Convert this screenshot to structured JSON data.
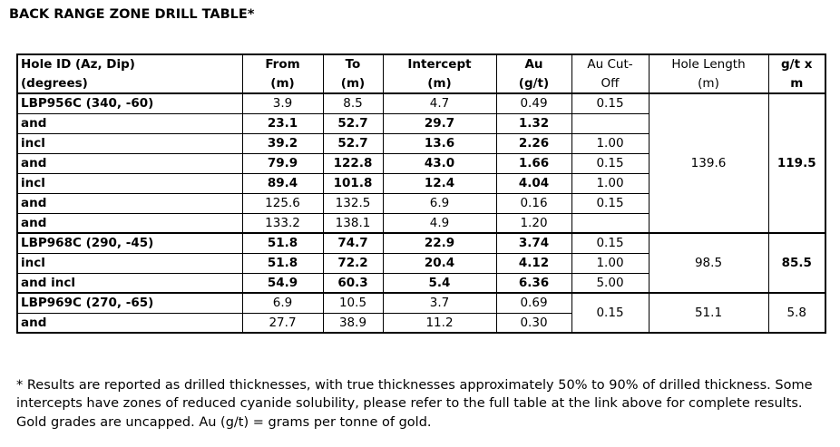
{
  "title": "BACK RANGE ZONE DRILL TABLE*",
  "colors": {
    "text": "#000000",
    "border": "#000000",
    "background": "#ffffff"
  },
  "table": {
    "columns": [
      {
        "name": "hole-id",
        "label": "Hole ID (Az, Dip)\n(degrees)",
        "bold": true
      },
      {
        "name": "from",
        "label": "From\n(m)",
        "bold": true
      },
      {
        "name": "to",
        "label": "To\n(m)",
        "bold": true
      },
      {
        "name": "intercept",
        "label": "Intercept\n(m)",
        "bold": true
      },
      {
        "name": "au",
        "label": "Au\n(g/t)",
        "bold": true
      },
      {
        "name": "au-cutoff",
        "label": "Au Cut-\nOff",
        "bold": false
      },
      {
        "name": "hole-length",
        "label": "Hole Length\n(m)",
        "bold": false
      },
      {
        "name": "gt-x-m",
        "label": "g/t x\nm",
        "bold": true
      }
    ],
    "rows": [
      {
        "group_start": true,
        "cells": [
          {
            "t": "LBP956C (340, -60)",
            "b": true
          },
          {
            "t": "3.9"
          },
          {
            "t": "8.5"
          },
          {
            "t": "4.7"
          },
          {
            "t": "0.49"
          },
          {
            "t": "0.15"
          },
          {
            "t": "139.6",
            "rowspan": 7
          },
          {
            "t": "119.5",
            "b": true,
            "rowspan": 7
          }
        ]
      },
      {
        "group_start": false,
        "cells": [
          {
            "t": "and",
            "b": true
          },
          {
            "t": "23.1",
            "b": true
          },
          {
            "t": "52.7",
            "b": true
          },
          {
            "t": "29.7",
            "b": true
          },
          {
            "t": "1.32",
            "b": true
          },
          {
            "t": ""
          }
        ]
      },
      {
        "group_start": false,
        "cells": [
          {
            "t": "incl",
            "b": true
          },
          {
            "t": "39.2",
            "b": true
          },
          {
            "t": "52.7",
            "b": true
          },
          {
            "t": "13.6",
            "b": true
          },
          {
            "t": "2.26",
            "b": true
          },
          {
            "t": "1.00"
          }
        ]
      },
      {
        "group_start": false,
        "cells": [
          {
            "t": "and",
            "b": true
          },
          {
            "t": "79.9",
            "b": true
          },
          {
            "t": "122.8",
            "b": true
          },
          {
            "t": "43.0",
            "b": true
          },
          {
            "t": "1.66",
            "b": true
          },
          {
            "t": "0.15"
          }
        ]
      },
      {
        "group_start": false,
        "cells": [
          {
            "t": "incl",
            "b": true
          },
          {
            "t": "89.4",
            "b": true
          },
          {
            "t": "101.8",
            "b": true
          },
          {
            "t": "12.4",
            "b": true
          },
          {
            "t": "4.04",
            "b": true
          },
          {
            "t": "1.00"
          }
        ]
      },
      {
        "group_start": false,
        "cells": [
          {
            "t": "and",
            "b": true
          },
          {
            "t": "125.6"
          },
          {
            "t": "132.5"
          },
          {
            "t": "6.9"
          },
          {
            "t": "0.16"
          },
          {
            "t": "0.15"
          }
        ]
      },
      {
        "group_start": false,
        "cells": [
          {
            "t": "and",
            "b": true
          },
          {
            "t": "133.2"
          },
          {
            "t": "138.1"
          },
          {
            "t": "4.9"
          },
          {
            "t": "1.20"
          },
          {
            "t": ""
          }
        ]
      },
      {
        "group_start": true,
        "cells": [
          {
            "t": "LBP968C (290, -45)",
            "b": true
          },
          {
            "t": "51.8",
            "b": true
          },
          {
            "t": "74.7",
            "b": true
          },
          {
            "t": "22.9",
            "b": true
          },
          {
            "t": "3.74",
            "b": true
          },
          {
            "t": "0.15"
          },
          {
            "t": "98.5",
            "rowspan": 3
          },
          {
            "t": "85.5",
            "b": true,
            "rowspan": 3
          }
        ]
      },
      {
        "group_start": false,
        "cells": [
          {
            "t": "incl",
            "b": true
          },
          {
            "t": "51.8",
            "b": true
          },
          {
            "t": "72.2",
            "b": true
          },
          {
            "t": "20.4",
            "b": true
          },
          {
            "t": "4.12",
            "b": true
          },
          {
            "t": "1.00"
          }
        ]
      },
      {
        "group_start": false,
        "cells": [
          {
            "t": "and incl",
            "b": true
          },
          {
            "t": "54.9",
            "b": true
          },
          {
            "t": "60.3",
            "b": true
          },
          {
            "t": "5.4",
            "b": true
          },
          {
            "t": "6.36",
            "b": true
          },
          {
            "t": "5.00"
          }
        ]
      },
      {
        "group_start": true,
        "cells": [
          {
            "t": "LBP969C (270, -65)",
            "b": true
          },
          {
            "t": "6.9"
          },
          {
            "t": "10.5"
          },
          {
            "t": "3.7"
          },
          {
            "t": "0.69"
          },
          {
            "t": "0.15",
            "rowspan": 2
          },
          {
            "t": "51.1",
            "rowspan": 2
          },
          {
            "t": "5.8",
            "rowspan": 2
          }
        ]
      },
      {
        "group_start": false,
        "cells": [
          {
            "t": "and",
            "b": true
          },
          {
            "t": "27.7"
          },
          {
            "t": "38.9"
          },
          {
            "t": "11.2"
          },
          {
            "t": "0.30"
          }
        ]
      }
    ]
  },
  "footnote": "* Results are reported as drilled thicknesses, with true thicknesses approximately 50% to 90% of drilled thickness. Some intercepts have zones of reduced cyanide solubility, please refer to the full table at the link above for complete results. Gold grades are uncapped. Au (g/t) = grams per tonne of gold."
}
